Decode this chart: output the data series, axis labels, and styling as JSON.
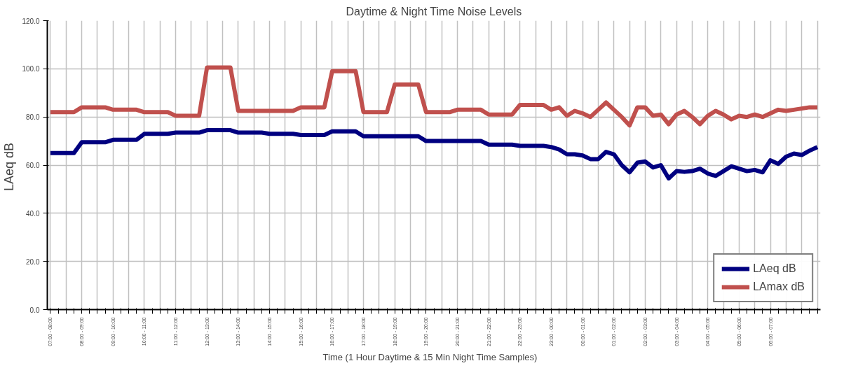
{
  "chart_data": {
    "type": "line",
    "title": "Daytime & Night Time Noise Levels",
    "xlabel": "Time  (1 Hour Daytime  & 15 Min Night Time  Samples)",
    "ylabel": "LAeq  dB",
    "categories": [
      "07:00 - 08:00",
      null,
      null,
      null,
      "08:00 - 09:00",
      null,
      null,
      null,
      "09:00 - 10:00",
      null,
      null,
      null,
      "10:00 - 11:00",
      null,
      null,
      null,
      "11:00 - 12:00",
      null,
      null,
      null,
      "12:00 - 13:00",
      null,
      null,
      null,
      "13:00 - 14:00",
      null,
      null,
      null,
      "14:00 - 15:00",
      null,
      null,
      null,
      "15:00 - 16:00",
      null,
      null,
      null,
      "16:00 - 17:00",
      null,
      null,
      null,
      "17:00 - 18:00",
      null,
      null,
      null,
      "18:00 - 19:00",
      null,
      null,
      null,
      "19:00 - 20:00",
      null,
      null,
      null,
      "20:00 - 21:00",
      null,
      null,
      null,
      "21:00 - 22:00",
      null,
      null,
      null,
      "22:00 - 23:00",
      null,
      null,
      null,
      "23:00 - 00:00",
      null,
      null,
      null,
      "00:00 - 01:00",
      null,
      null,
      null,
      "01:00 - 02:00",
      null,
      null,
      null,
      "02:00 - 03:00",
      null,
      null,
      null,
      "03:00 - 04:00",
      null,
      null,
      null,
      "04:00 - 05:00",
      null,
      null,
      null,
      "05:00 - 06:00",
      null,
      null,
      null,
      "06:00 - 07:00",
      null,
      null,
      null,
      null,
      null,
      null
    ],
    "series": [
      {
        "name": "LAeq dB",
        "color": "#000080",
        "values": [
          65,
          65,
          65,
          65,
          69.5,
          69.5,
          69.5,
          69.5,
          70.5,
          70.5,
          70.5,
          70.5,
          73,
          73,
          73,
          73,
          73.5,
          73.5,
          73.5,
          73.5,
          74.5,
          74.5,
          74.5,
          74.5,
          73.5,
          73.5,
          73.5,
          73.5,
          73,
          73,
          73,
          73,
          72.5,
          72.5,
          72.5,
          72.5,
          74,
          74,
          74,
          74,
          72,
          72,
          72,
          72,
          72,
          72,
          72,
          72,
          70,
          70,
          70,
          70,
          70,
          70,
          70,
          70,
          68.5,
          68.5,
          68.5,
          68.5,
          68,
          68,
          68,
          68,
          67.5,
          66.5,
          64.5,
          64.5,
          64,
          62.5,
          62.5,
          65.5,
          64.5,
          60,
          57,
          61,
          61.5,
          59,
          60,
          54.5,
          57.5,
          57.2,
          57.5,
          58.5,
          56.5,
          55.5,
          57.5,
          59.5,
          58.5,
          57.5,
          58,
          57,
          62,
          60.5,
          63.5,
          64.8,
          64.2,
          66,
          67.5
        ]
      },
      {
        "name": "LAmax dB",
        "color": "#c0504d",
        "values": [
          82,
          82,
          82,
          82,
          84,
          84,
          84,
          84,
          83,
          83,
          83,
          83,
          82,
          82,
          82,
          82,
          80.5,
          80.5,
          80.5,
          80.5,
          100.5,
          100.5,
          100.5,
          100.5,
          82.5,
          82.5,
          82.5,
          82.5,
          82.5,
          82.5,
          82.5,
          82.5,
          84,
          84,
          84,
          84,
          99,
          99,
          99,
          99,
          82,
          82,
          82,
          82,
          93.5,
          93.5,
          93.5,
          93.5,
          82,
          82,
          82,
          82,
          83,
          83,
          83,
          83,
          81,
          81,
          81,
          81,
          85,
          85,
          85,
          85,
          83,
          84,
          80.5,
          82.5,
          81.5,
          80,
          83,
          86,
          83,
          80,
          76.5,
          84,
          84,
          80.5,
          81,
          77,
          81,
          82.5,
          80,
          77,
          80.5,
          82.5,
          81,
          79,
          80.5,
          80,
          81,
          80,
          81.5,
          83,
          82.5,
          83,
          83.5,
          84,
          84
        ]
      }
    ],
    "ylim": [
      0,
      120
    ],
    "yticks": [
      {
        "value": 0,
        "label": "0.0"
      },
      {
        "value": 20,
        "label": "20.0"
      },
      {
        "value": 40,
        "label": "40.0"
      },
      {
        "value": 60,
        "label": "60.0"
      },
      {
        "value": 80,
        "label": "80.0"
      },
      {
        "value": 100,
        "label": "100.0"
      },
      {
        "value": 120,
        "label": "120.0"
      }
    ],
    "grid": true,
    "legend": "bottom right",
    "marker": "none",
    "line_style": "solid"
  }
}
